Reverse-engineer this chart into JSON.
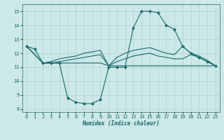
{
  "background_color": "#cce8e8",
  "grid_color": "#b0d0d0",
  "line_color": "#1a6b6b",
  "x_label": "Humidex (Indice chaleur)",
  "xlim": [
    -0.5,
    23.5
  ],
  "ylim": [
    7.8,
    15.5
  ],
  "yticks": [
    8,
    9,
    10,
    11,
    12,
    13,
    14,
    15
  ],
  "xticks": [
    0,
    1,
    2,
    3,
    4,
    5,
    6,
    7,
    8,
    9,
    10,
    11,
    12,
    13,
    14,
    15,
    16,
    17,
    18,
    19,
    20,
    21,
    22,
    23
  ],
  "lines": [
    {
      "x": [
        0,
        1,
        2,
        3,
        4,
        5,
        6,
        7,
        8,
        9,
        10,
        11,
        12,
        13,
        14,
        15,
        16,
        17,
        18,
        19,
        20,
        21,
        22,
        23
      ],
      "y": [
        12.5,
        12.3,
        11.3,
        11.3,
        11.3,
        8.8,
        8.5,
        8.4,
        8.4,
        8.7,
        11.0,
        11.0,
        11.0,
        13.8,
        15.0,
        15.0,
        14.9,
        14.0,
        13.7,
        12.5,
        12.0,
        11.7,
        11.4,
        11.1
      ],
      "marker": "D",
      "markersize": 2.0,
      "linewidth": 0.8
    },
    {
      "x": [
        0,
        2,
        3,
        4,
        5,
        6,
        7,
        8,
        9,
        10,
        11,
        12,
        13,
        14,
        15,
        16,
        17,
        18,
        19,
        20,
        21,
        22,
        23
      ],
      "y": [
        12.5,
        11.3,
        11.3,
        11.3,
        11.3,
        11.3,
        11.3,
        11.3,
        11.3,
        11.1,
        11.1,
        11.1,
        11.1,
        11.1,
        11.1,
        11.1,
        11.1,
        11.1,
        11.1,
        11.1,
        11.1,
        11.1,
        11.1
      ],
      "marker": null,
      "markersize": 0,
      "linewidth": 0.8
    },
    {
      "x": [
        0,
        2,
        3,
        4,
        5,
        6,
        7,
        8,
        9,
        10,
        11,
        12,
        13,
        14,
        15,
        16,
        17,
        18,
        19,
        20,
        21,
        22,
        23
      ],
      "y": [
        12.5,
        11.3,
        11.3,
        11.4,
        11.5,
        11.6,
        11.7,
        11.8,
        11.9,
        11.1,
        11.4,
        11.6,
        11.8,
        11.9,
        12.0,
        11.8,
        11.7,
        11.6,
        11.6,
        11.9,
        11.7,
        11.4,
        11.1
      ],
      "marker": null,
      "markersize": 0,
      "linewidth": 0.8
    },
    {
      "x": [
        0,
        2,
        3,
        4,
        5,
        6,
        7,
        8,
        9,
        10,
        11,
        12,
        13,
        14,
        15,
        16,
        17,
        18,
        19,
        20,
        21,
        22,
        23
      ],
      "y": [
        12.5,
        11.3,
        11.4,
        11.6,
        11.7,
        11.8,
        12.0,
        12.1,
        12.2,
        11.1,
        11.7,
        12.0,
        12.2,
        12.3,
        12.4,
        12.2,
        12.0,
        11.9,
        12.5,
        12.0,
        11.8,
        11.5,
        11.1
      ],
      "marker": null,
      "markersize": 0,
      "linewidth": 0.8
    }
  ]
}
